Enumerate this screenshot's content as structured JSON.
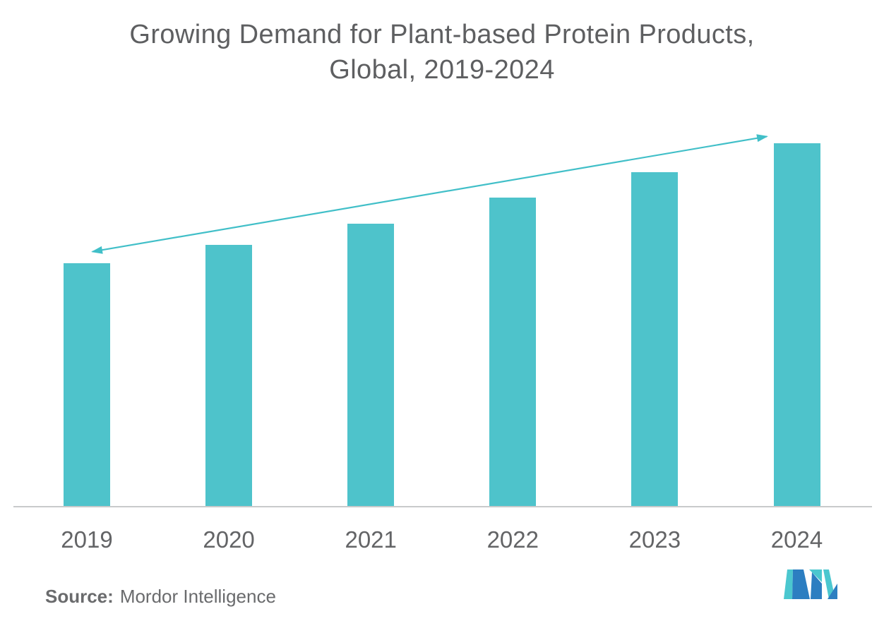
{
  "title": {
    "line1": "Growing Demand for Plant-based Protein Products,",
    "line2": "Global, 2019-2024"
  },
  "source": {
    "label": "Source:",
    "text": "Mordor Intelligence"
  },
  "chart_data": {
    "type": "bar",
    "title": "Growing Demand for Plant-based Protein Products, Global, 2019-2024",
    "categories": [
      "2019",
      "2020",
      "2021",
      "2022",
      "2023",
      "2024"
    ],
    "values": [
      67,
      72,
      78,
      85,
      92,
      100
    ],
    "value_scale": "relative index estimated from bar heights; chart shows no y-axis or data labels",
    "xlabel": "",
    "ylabel": "",
    "ylim": [
      0,
      100
    ],
    "grid": false,
    "legend": false,
    "annotations": [
      {
        "type": "trend-arrow",
        "style": "double-headed",
        "from_category": "2019",
        "to_category": "2024",
        "direction": "increasing"
      }
    ]
  },
  "colors": {
    "bar": "#4EC3CB",
    "arrow": "#41BFC8",
    "title_text": "#5E5F61",
    "axis_label": "#636466",
    "axis_line": "#C8CACB",
    "source_text": "#6A6B6D",
    "logo_teal": "#4BC7CF",
    "logo_blue": "#2C7EC1",
    "background": "#FFFFFF"
  }
}
